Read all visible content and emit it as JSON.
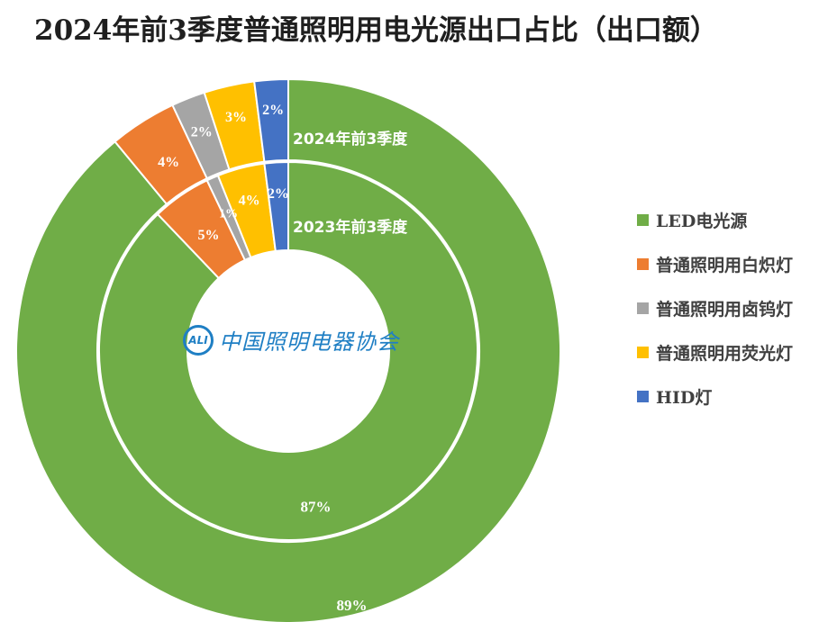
{
  "chart_data": {
    "type": "donut",
    "title": "2024年前3季度普通照明用电光源出口占比（出口额）",
    "categories": [
      "LED电光源",
      "普通照明用白炽灯",
      "普通照明用卤钨灯",
      "普通照明用荧光灯",
      "HID灯"
    ],
    "colors": [
      "#70ad47",
      "#ed7d31",
      "#a5a5a5",
      "#ffc000",
      "#4472c4"
    ],
    "series": [
      {
        "name": "2024年前3季度",
        "ring": "outer",
        "values": [
          89,
          4,
          2,
          3,
          2
        ],
        "labels": [
          "89%",
          "4%",
          "2%",
          "3%",
          "2%"
        ]
      },
      {
        "name": "2023年前3季度",
        "ring": "inner",
        "values": [
          87,
          5,
          1,
          4,
          2
        ],
        "labels": [
          "87%",
          "5%",
          "1%",
          "4%",
          "2%"
        ]
      }
    ],
    "legend_position": "right"
  },
  "logo": {
    "badge": "ALI",
    "text": "中国照明电器协会"
  }
}
